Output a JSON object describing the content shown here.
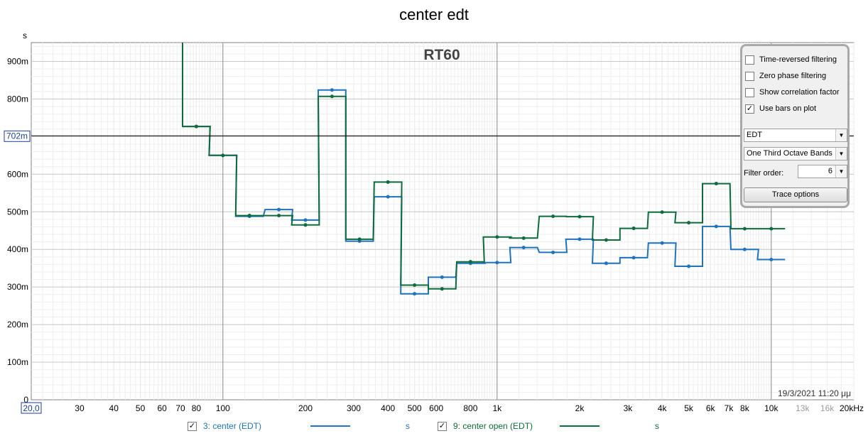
{
  "chart_data": {
    "type": "line",
    "title": "center edt",
    "subtitle": "RT60",
    "ylabel": "s",
    "x_scale": "log",
    "xlim": [
      20,
      20000
    ],
    "ylim": [
      0,
      0.95
    ],
    "y_ticks": [
      {
        "value": 0,
        "label": "0"
      },
      {
        "value": 0.1,
        "label": "100m"
      },
      {
        "value": 0.2,
        "label": "200m"
      },
      {
        "value": 0.3,
        "label": "300m"
      },
      {
        "value": 0.4,
        "label": "400m"
      },
      {
        "value": 0.5,
        "label": "500m"
      },
      {
        "value": 0.6,
        "label": "600m"
      },
      {
        "value": 0.8,
        "label": "800m"
      },
      {
        "value": 0.9,
        "label": "900m"
      }
    ],
    "x_ticks": [
      {
        "value": 20,
        "label": "20,0",
        "boxed": true
      },
      {
        "value": 30,
        "label": "30"
      },
      {
        "value": 40,
        "label": "40"
      },
      {
        "value": 50,
        "label": "50"
      },
      {
        "value": 60,
        "label": "60"
      },
      {
        "value": 70,
        "label": "70"
      },
      {
        "value": 80,
        "label": "80"
      },
      {
        "value": 100,
        "label": "100"
      },
      {
        "value": 200,
        "label": "200"
      },
      {
        "value": 300,
        "label": "300"
      },
      {
        "value": 400,
        "label": "400"
      },
      {
        "value": 500,
        "label": "500"
      },
      {
        "value": 600,
        "label": "600"
      },
      {
        "value": 800,
        "label": "800"
      },
      {
        "value": 1000,
        "label": "1k"
      },
      {
        "value": 2000,
        "label": "2k"
      },
      {
        "value": 3000,
        "label": "3k"
      },
      {
        "value": 4000,
        "label": "4k"
      },
      {
        "value": 5000,
        "label": "5k"
      },
      {
        "value": 6000,
        "label": "6k"
      },
      {
        "value": 7000,
        "label": "7k"
      },
      {
        "value": 8000,
        "label": "8k"
      },
      {
        "value": 10000,
        "label": "10k"
      },
      {
        "value": 13000,
        "label": "13k",
        "grey": true
      },
      {
        "value": 16000,
        "label": "16k",
        "grey": true
      },
      {
        "value": 20000,
        "label": "20kHz"
      }
    ],
    "cursor": {
      "y": 0.702,
      "label": "702m"
    },
    "timestamp": "19/3/2021 11:20 μμ",
    "bands": [
      80,
      100,
      125,
      160,
      200,
      250,
      315,
      400,
      500,
      630,
      800,
      1000,
      1250,
      1600,
      2000,
      2500,
      3150,
      4000,
      5000,
      6300,
      8000,
      10000
    ],
    "series": [
      {
        "name": "3: center (EDT)",
        "color": "#1e73be",
        "unit": "s",
        "values": [
          0.727,
          0.65,
          0.488,
          0.506,
          0.478,
          0.824,
          0.422,
          0.54,
          0.282,
          0.326,
          0.363,
          0.365,
          0.405,
          0.392,
          0.427,
          0.363,
          0.378,
          0.417,
          0.355,
          0.461,
          0.4,
          0.373
        ]
      },
      {
        "name": "9: center open (EDT)",
        "color": "#0e6b3c",
        "unit": "s",
        "values": [
          0.727,
          0.65,
          0.49,
          0.49,
          0.465,
          0.807,
          0.427,
          0.579,
          0.305,
          0.295,
          0.367,
          0.433,
          0.43,
          0.488,
          0.487,
          0.425,
          0.456,
          0.499,
          0.471,
          0.575,
          0.455,
          0.455
        ]
      }
    ]
  },
  "controls": {
    "checkboxes": [
      {
        "label": "Time-reversed filtering",
        "checked": false
      },
      {
        "label": "Zero phase filtering",
        "checked": false
      },
      {
        "label": "Show correlation factor",
        "checked": false
      },
      {
        "label": "Use bars on plot",
        "checked": true
      }
    ],
    "metric_select": "EDT",
    "band_select": "One Third Octave Bands",
    "filter_order_label": "Filter order:",
    "filter_order_value": "6",
    "trace_options_label": "Trace options"
  },
  "legend": [
    {
      "label": "3: center (EDT)",
      "unit": "s",
      "checked": true,
      "color": "#1e73be"
    },
    {
      "label": "9: center open (EDT)",
      "unit": "s",
      "checked": true,
      "color": "#0e6b3c"
    }
  ]
}
